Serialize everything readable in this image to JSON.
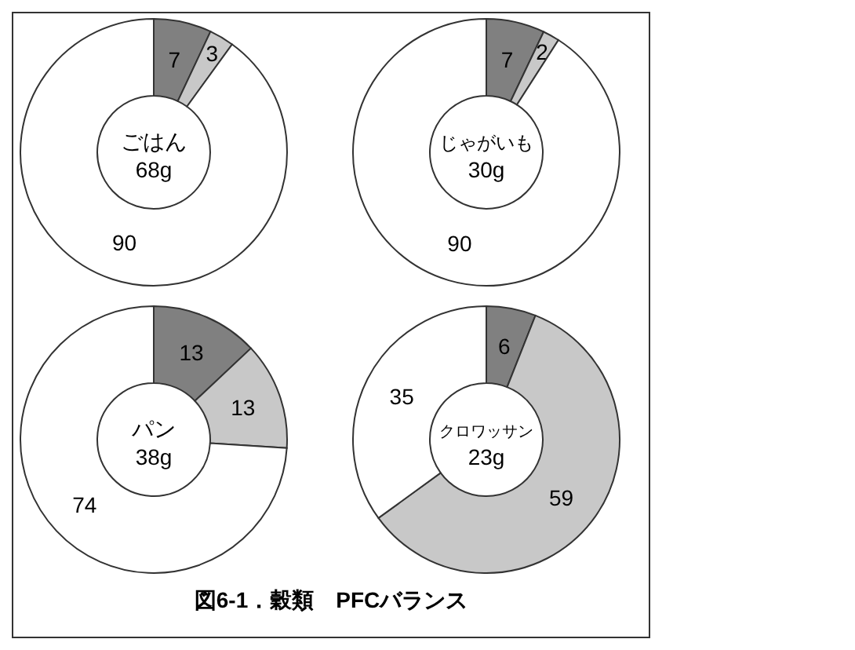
{
  "chart_data": [
    {
      "type": "donut",
      "title": "ごはん",
      "subtitle": "68g",
      "categories": [
        null,
        null,
        null
      ],
      "values": [
        7,
        3,
        90
      ],
      "colors": [
        "#808080",
        "#c8c8c8",
        "#ffffff"
      ],
      "data_labels": true
    },
    {
      "type": "donut",
      "title": "じゃがいも",
      "subtitle": "30g",
      "categories": [
        null,
        null,
        null
      ],
      "values": [
        7,
        2,
        90
      ],
      "colors": [
        "#808080",
        "#c8c8c8",
        "#ffffff"
      ],
      "data_labels": true
    },
    {
      "type": "donut",
      "title": "パン",
      "subtitle": "38g",
      "categories": [
        null,
        null,
        null
      ],
      "values": [
        13,
        13,
        74
      ],
      "colors": [
        "#808080",
        "#c8c8c8",
        "#ffffff"
      ],
      "data_labels": true
    },
    {
      "type": "donut",
      "title": "クロワッサン",
      "subtitle": "23g",
      "categories": [
        null,
        null,
        null
      ],
      "values": [
        6,
        59,
        35
      ],
      "colors": [
        "#808080",
        "#c8c8c8",
        "#ffffff"
      ],
      "data_labels": true,
      "annotations": [
        "図6-1．穀類　PFCバランス"
      ]
    }
  ]
}
